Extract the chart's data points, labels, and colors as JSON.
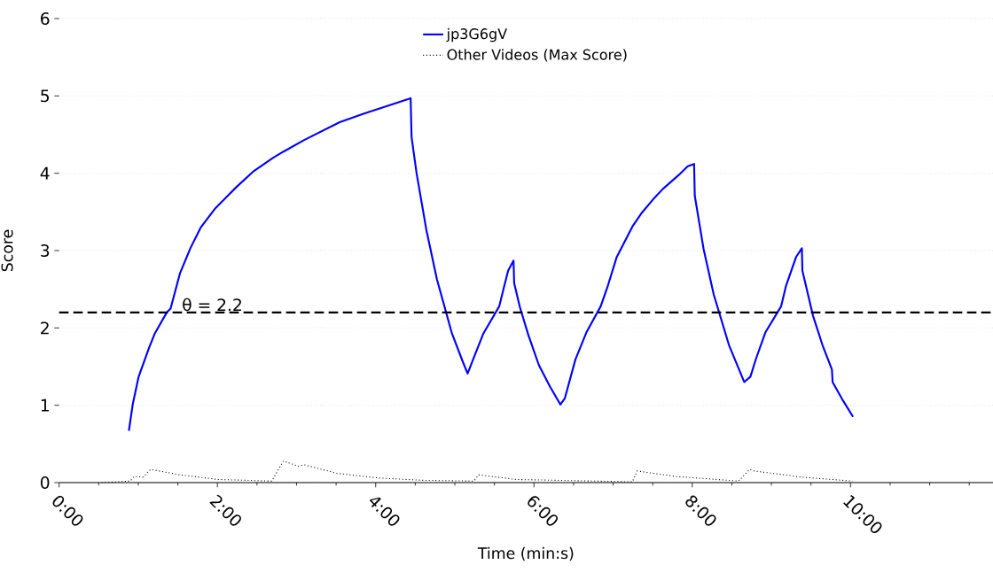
{
  "chart_data": {
    "type": "line",
    "xlabel": "Time (min:s)",
    "ylabel": "Score",
    "xlim": [
      0,
      708
    ],
    "ylim": [
      0,
      6
    ],
    "xticks": [
      {
        "value": 0,
        "label": "0:00"
      },
      {
        "value": 30,
        "label": null
      },
      {
        "value": 60,
        "label": null
      },
      {
        "value": 90,
        "label": null
      },
      {
        "value": 120,
        "label": "2:00"
      },
      {
        "value": 150,
        "label": null
      },
      {
        "value": 180,
        "label": null
      },
      {
        "value": 210,
        "label": null
      },
      {
        "value": 240,
        "label": "4:00"
      },
      {
        "value": 270,
        "label": null
      },
      {
        "value": 300,
        "label": null
      },
      {
        "value": 330,
        "label": null
      },
      {
        "value": 360,
        "label": "6:00"
      },
      {
        "value": 390,
        "label": null
      },
      {
        "value": 420,
        "label": null
      },
      {
        "value": 450,
        "label": null
      },
      {
        "value": 480,
        "label": "8:00"
      },
      {
        "value": 510,
        "label": null
      },
      {
        "value": 540,
        "label": null
      },
      {
        "value": 570,
        "label": null
      },
      {
        "value": 600,
        "label": "10:00"
      },
      {
        "value": 630,
        "label": null
      },
      {
        "value": 660,
        "label": null
      },
      {
        "value": 690,
        "label": null
      }
    ],
    "yticks": [
      0,
      1,
      2,
      3,
      4,
      5,
      6
    ],
    "grid": "y",
    "legend": "top",
    "series": [
      {
        "name": "jp3G6gV",
        "color": "#0000ff",
        "line_style": "solid",
        "x": [
          52.9,
          55.8,
          60.3,
          68.1,
          72.6,
          81.6,
          84.5,
          91.7,
          99.5,
          107.4,
          118.6,
          134.3,
          147.7,
          162.3,
          170.1,
          185.8,
          212.7,
          230.7,
          266.5,
          267.2,
          271,
          278.4,
          286.4,
          297.6,
          306.1,
          309.7,
          313.8,
          321.7,
          333.7,
          337.3,
          340.4,
          344.5,
          345.0,
          349.3,
          355.7,
          363.7,
          372.2,
          380.0,
          383.4,
          391.4,
          399.7,
          410.6,
          416.1,
          422.6,
          434.6,
          441.8,
          450.2,
          457.9,
          469.9,
          476.6,
          481.4,
          481.9,
          488.6,
          496.3,
          507.8,
          519.4,
          524.1,
          528.3,
          535.4,
          547.4,
          551.0,
          558.8,
          563.1,
          563.5,
          571.5,
          578.7,
          585.9,
          586.4,
          594.3,
          601.9
        ],
        "values": [
          0.67,
          1.01,
          1.37,
          1.74,
          1.93,
          2.2,
          2.25,
          2.71,
          3.03,
          3.3,
          3.55,
          3.82,
          4.03,
          4.2,
          4.28,
          4.43,
          4.66,
          4.77,
          4.97,
          4.47,
          4.0,
          3.27,
          2.63,
          1.94,
          1.56,
          1.41,
          1.59,
          1.93,
          2.28,
          2.53,
          2.74,
          2.87,
          2.58,
          2.27,
          1.91,
          1.52,
          1.24,
          1.01,
          1.09,
          1.59,
          1.94,
          2.28,
          2.55,
          2.91,
          3.31,
          3.49,
          3.66,
          3.8,
          3.98,
          4.09,
          4.12,
          3.71,
          3.02,
          2.43,
          1.78,
          1.3,
          1.37,
          1.6,
          1.94,
          2.28,
          2.54,
          2.92,
          3.03,
          2.74,
          2.16,
          1.78,
          1.46,
          1.3,
          1.06,
          0.85
        ]
      },
      {
        "name": "Other Videos (Max Score)",
        "color": "#000000",
        "line_style": "dotted",
        "x": [
          32.3,
          54.0,
          57.0,
          63.7,
          69.3,
          91.7,
          120.8,
          161.2,
          170.1,
          181.4,
          185.8,
          210.5,
          241.9,
          275.5,
          314.5,
          318.1,
          346.9,
          434.6,
          438.2,
          467.0,
          515.1,
          523.5,
          527.0,
          563.1,
          601.5
        ],
        "values": [
          0,
          0.02,
          0.08,
          0.07,
          0.17,
          0.1,
          0.04,
          0.02,
          0.28,
          0.21,
          0.23,
          0.12,
          0.06,
          0.03,
          0.02,
          0.1,
          0.04,
          0.01,
          0.15,
          0.08,
          0.02,
          0.17,
          0.15,
          0.07,
          0.02
        ]
      }
    ],
    "ref_lines": [
      {
        "axis": "y",
        "value": 2.2,
        "label": "θ = 2.2",
        "color": "#000000",
        "line_style": "dashed"
      }
    ]
  }
}
